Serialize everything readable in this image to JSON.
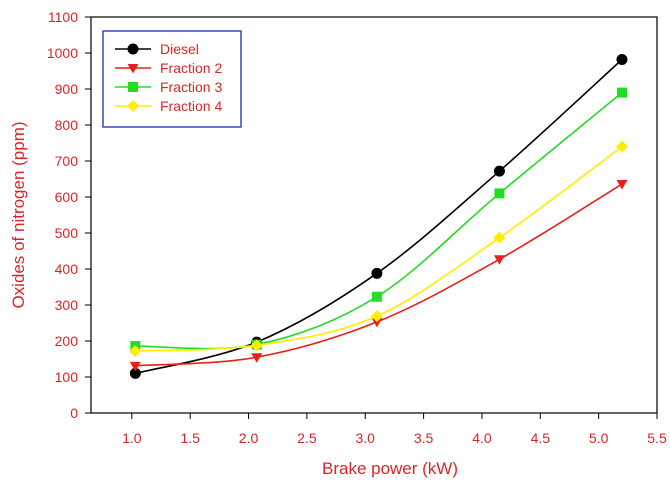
{
  "colors": {
    "axis": "#000000",
    "label_text": "#d62728",
    "tick_text": "#d62728",
    "legend_border": "#1f3fbf"
  },
  "chart_data": {
    "type": "line",
    "title": "",
    "xlabel": "Brake power (kW)",
    "ylabel": "Oxides of nitrogen (ppm)",
    "xlim": [
      0.65,
      5.5
    ],
    "ylim": [
      0,
      1100
    ],
    "xticks": [
      1.0,
      1.5,
      2.0,
      2.5,
      3.0,
      3.5,
      4.0,
      4.5,
      5.0,
      5.5
    ],
    "xtick_labels": [
      "1.0",
      "1.5",
      "2.0",
      "2.5",
      "3.0",
      "3.5",
      "4.0",
      "4.5",
      "5.0",
      "5.5"
    ],
    "yticks": [
      0,
      100,
      200,
      300,
      400,
      500,
      600,
      700,
      800,
      900,
      1000,
      1100
    ],
    "ytick_labels": [
      "0",
      "100",
      "200",
      "300",
      "400",
      "500",
      "600",
      "700",
      "800",
      "900",
      "1000",
      "1100"
    ],
    "grid": false,
    "legend_position": "top-left",
    "x": [
      1.03,
      2.07,
      3.1,
      4.15,
      5.2
    ],
    "series": [
      {
        "name": "Diesel",
        "values": [
          110,
          197,
          388,
          672,
          982
        ],
        "color": "#000000",
        "marker": "circle"
      },
      {
        "name": "Fraction 2",
        "values": [
          131,
          155,
          253,
          427,
          636
        ],
        "color": "#e8201a",
        "marker": "triangle-down"
      },
      {
        "name": "Fraction 3",
        "values": [
          186,
          190,
          323,
          610,
          890
        ],
        "color": "#22dd22",
        "marker": "square"
      },
      {
        "name": "Fraction 4",
        "values": [
          172,
          188,
          269,
          487,
          740
        ],
        "color": "#ffee00",
        "marker": "diamond"
      }
    ]
  }
}
